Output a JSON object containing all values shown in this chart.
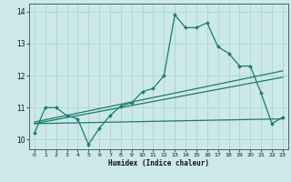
{
  "xlabel": "Humidex (Indice chaleur)",
  "xlim": [
    -0.5,
    23.5
  ],
  "ylim": [
    9.7,
    14.25
  ],
  "bg_color": "#cce8e8",
  "grid_color": "#aad4d4",
  "line_color": "#1a7a6e",
  "series_main": {
    "x": [
      0,
      1,
      2,
      3,
      4,
      5,
      6,
      7,
      8,
      9,
      10,
      11,
      12,
      13,
      14,
      15,
      16,
      17,
      18,
      19,
      20,
      21,
      22,
      23
    ],
    "y": [
      10.2,
      11.0,
      11.0,
      10.75,
      10.65,
      9.85,
      10.35,
      10.75,
      11.05,
      11.15,
      11.5,
      11.6,
      12.0,
      13.9,
      13.5,
      13.5,
      13.65,
      12.9,
      12.7,
      12.3,
      12.3,
      11.45,
      10.5,
      10.7
    ]
  },
  "series_trend1": {
    "x": [
      0,
      23
    ],
    "y": [
      10.55,
      12.15
    ]
  },
  "series_trend2": {
    "x": [
      0,
      23
    ],
    "y": [
      10.5,
      11.95
    ]
  },
  "series_flat": {
    "x": [
      0,
      23
    ],
    "y": [
      10.5,
      10.65
    ]
  },
  "yticks": [
    10,
    11,
    12,
    13,
    14
  ],
  "xticks": [
    0,
    1,
    2,
    3,
    4,
    5,
    6,
    7,
    8,
    9,
    10,
    11,
    12,
    13,
    14,
    15,
    16,
    17,
    18,
    19,
    20,
    21,
    22,
    23
  ]
}
